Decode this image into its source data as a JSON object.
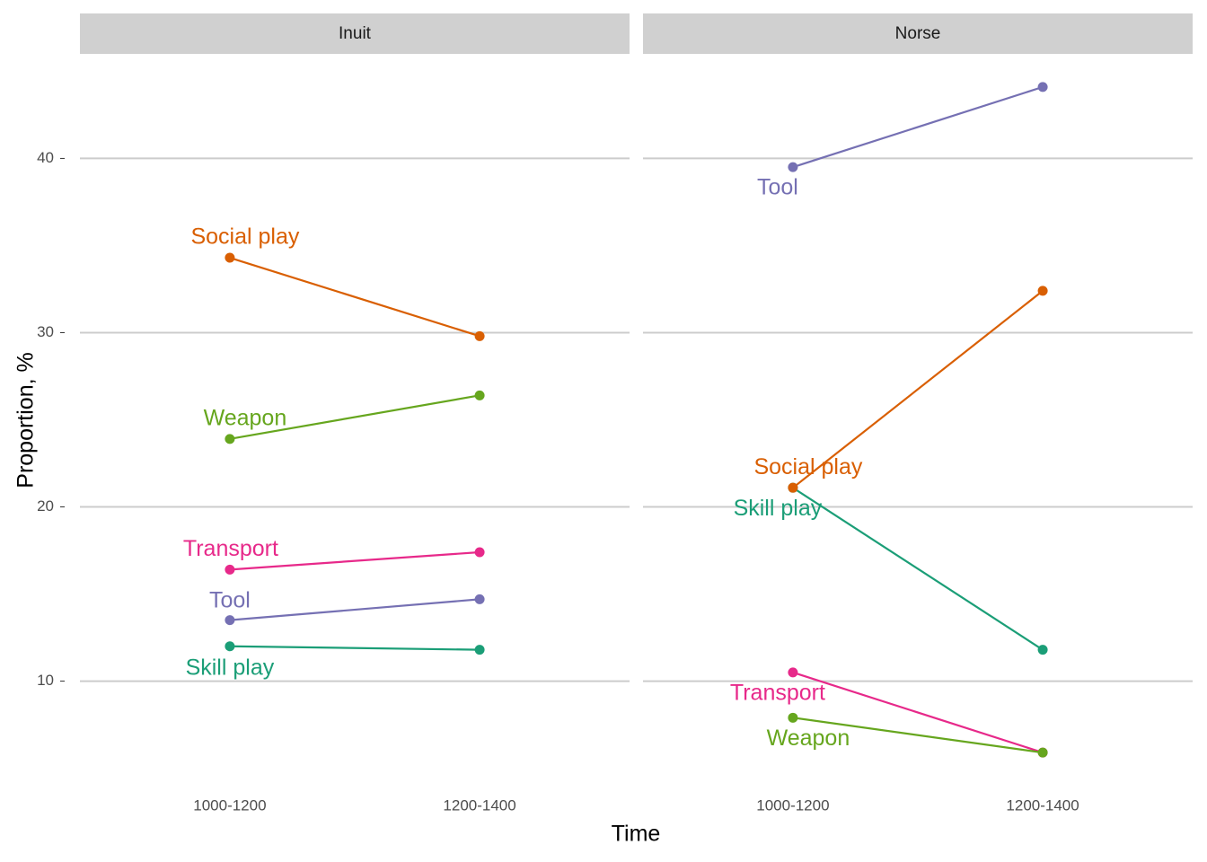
{
  "chart_data": [
    {
      "type": "line",
      "title": "Inuit",
      "xlabel": "Time",
      "ylabel": "Proportion, %",
      "categories": [
        "1000-1200",
        "1200-1400"
      ],
      "ylim": [
        4,
        46
      ],
      "yticks": [
        10,
        20,
        30,
        40
      ],
      "grid": true,
      "series": [
        {
          "name": "Skill play",
          "color": "#1b9e77",
          "values": [
            12.0,
            11.8
          ]
        },
        {
          "name": "Social play",
          "color": "#d95f02",
          "values": [
            34.3,
            29.8
          ]
        },
        {
          "name": "Tool",
          "color": "#7570b3",
          "values": [
            13.5,
            14.7
          ]
        },
        {
          "name": "Transport",
          "color": "#e7298a",
          "values": [
            16.4,
            17.4
          ]
        },
        {
          "name": "Weapon",
          "color": "#66a61e",
          "values": [
            23.9,
            26.4
          ]
        }
      ]
    },
    {
      "type": "line",
      "title": "Norse",
      "categories": [
        "1000-1200",
        "1200-1400"
      ],
      "ylim": [
        4,
        46
      ],
      "yticks": [
        10,
        20,
        30,
        40
      ],
      "grid": true,
      "series": [
        {
          "name": "Skill play",
          "color": "#1b9e77",
          "values": [
            21.1,
            11.8
          ]
        },
        {
          "name": "Social play",
          "color": "#d95f02",
          "values": [
            21.1,
            32.4
          ]
        },
        {
          "name": "Tool",
          "color": "#7570b3",
          "values": [
            39.5,
            44.1
          ]
        },
        {
          "name": "Transport",
          "color": "#e7298a",
          "values": [
            10.5,
            5.9
          ]
        },
        {
          "name": "Weapon",
          "color": "#66a61e",
          "values": [
            7.9,
            5.9
          ]
        }
      ]
    }
  ]
}
